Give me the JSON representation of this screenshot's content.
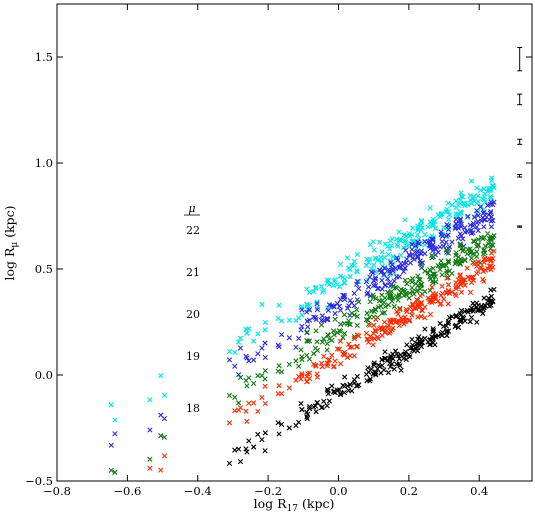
{
  "chart_data": {
    "type": "scatter",
    "title": "",
    "xlabel": "log R",
    "xlabel_sub": "17",
    "xlabel_unit": " (kpc)",
    "ylabel": "log R",
    "ylabel_sub": "μ",
    "ylabel_unit": " (kpc)",
    "xlim": [
      -0.8,
      0.55
    ],
    "ylim": [
      -0.5,
      1.75
    ],
    "xticks": [
      -0.8,
      -0.6,
      -0.4,
      -0.2,
      0.0,
      0.2,
      0.4
    ],
    "xtick_labels": [
      "−0.8",
      "−0.6",
      "−0.4",
      "−0.2",
      "0.0",
      "0.2",
      "0.4"
    ],
    "yticks": [
      -0.5,
      0.0,
      0.5,
      1.0,
      1.5
    ],
    "ytick_labels": [
      "−0.5",
      "0.0",
      "0.5",
      "1.0",
      "1.5"
    ],
    "grid": false,
    "marker": "x",
    "legend": {
      "title": "μ",
      "placement": "center-left",
      "entries": [
        "22",
        "21",
        "20",
        "19",
        "18"
      ]
    },
    "series": [
      {
        "name": "22",
        "color": "#00e5e5",
        "offset": 0.44,
        "scatter": 0.07
      },
      {
        "name": "21",
        "color": "#2a2ae0",
        "offset": 0.33,
        "scatter": 0.06
      },
      {
        "name": "20",
        "color": "#107a10",
        "offset": 0.21,
        "scatter": 0.055
      },
      {
        "name": "19",
        "color": "#ff2a00",
        "offset": 0.09,
        "scatter": 0.05
      },
      {
        "name": "18",
        "color": "#000000",
        "offset": -0.08,
        "scatter": 0.04
      }
    ],
    "sample_x": [
      -0.64,
      -0.64,
      -0.54,
      -0.52,
      -0.5,
      -0.3,
      -0.29,
      -0.27,
      -0.25,
      -0.22,
      -0.2,
      -0.18,
      -0.15,
      -0.12,
      -0.1,
      -0.08,
      -0.06,
      -0.04,
      -0.02,
      0.0,
      0.02,
      0.04,
      0.06,
      0.08,
      0.1,
      0.12,
      0.14,
      0.16,
      0.18,
      0.2,
      0.22,
      0.24,
      0.26,
      0.28,
      0.3,
      0.32,
      0.34,
      0.36,
      0.38,
      0.4,
      0.42,
      0.43
    ],
    "error_bars": [
      {
        "y": 1.49,
        "half": 0.055
      },
      {
        "y": 1.3,
        "half": 0.025
      },
      {
        "y": 1.1,
        "half": 0.012
      },
      {
        "y": 0.94,
        "half": 0.006
      },
      {
        "y": 0.7,
        "half": 0.003
      }
    ],
    "error_bar_x": 0.515
  }
}
